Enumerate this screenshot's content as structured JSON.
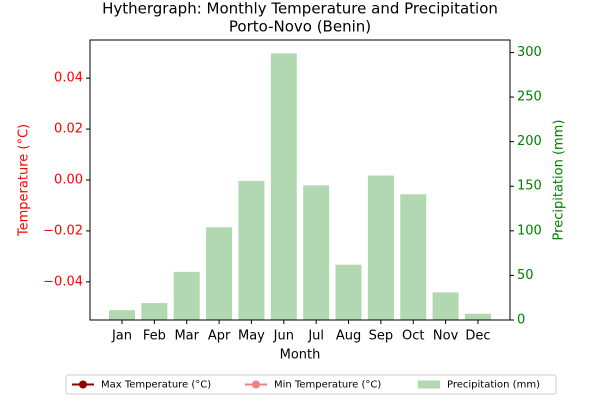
{
  "chart_data": {
    "type": "bar",
    "title": "Hythergraph: Monthly Temperature and Precipitation",
    "subtitle": "Porto-Novo (Benin)",
    "x_label": "Month",
    "y_label": "Temperature (°C)",
    "y2_label": "Precipitation (mm)",
    "categories": [
      "Jan",
      "Feb",
      "Mar",
      "Apr",
      "May",
      "Jun",
      "Jul",
      "Aug",
      "Sep",
      "Oct",
      "Nov",
      "Dec"
    ],
    "series": [
      {
        "name": "Max Temperature (°C)",
        "type": "line",
        "color": "#8b0000",
        "values": [
          null,
          null,
          null,
          null,
          null,
          null,
          null,
          null,
          null,
          null,
          null,
          null
        ]
      },
      {
        "name": "Min Temperature (°C)",
        "type": "line",
        "color": "#f08080",
        "values": [
          null,
          null,
          null,
          null,
          null,
          null,
          null,
          null,
          null,
          null,
          null,
          null
        ]
      },
      {
        "name": "Precipitation (mm)",
        "type": "bar",
        "axis": "y2",
        "color": "#b2d8b2",
        "values": [
          11,
          19,
          54,
          104,
          156,
          299,
          151,
          62,
          162,
          141,
          31,
          7
        ]
      }
    ],
    "ylim": [
      -0.055,
      0.055
    ],
    "yticks": [
      {
        "value": -0.04,
        "label": "−0.04"
      },
      {
        "value": -0.02,
        "label": "−0.02"
      },
      {
        "value": 0,
        "label": "0.00"
      },
      0.02,
      0.04
    ],
    "y2lim": [
      0,
      314
    ],
    "y2ticks": [
      0,
      50,
      100,
      150,
      200,
      250,
      300
    ],
    "legend": "bottom"
  }
}
